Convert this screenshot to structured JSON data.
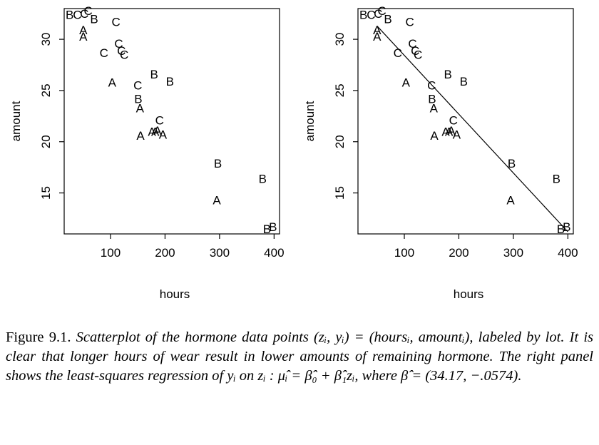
{
  "chart_data": [
    {
      "type": "scatter",
      "panel": "left",
      "xlabel": "hours",
      "ylabel": "amount",
      "xlim": [
        15,
        410
      ],
      "ylim": [
        11,
        33
      ],
      "xticks": [
        100,
        200,
        300,
        400
      ],
      "yticks": [
        15,
        20,
        25,
        30
      ],
      "points": [
        {
          "x": 25,
          "y": 32.4,
          "label": "B"
        },
        {
          "x": 39,
          "y": 32.4,
          "label": "C"
        },
        {
          "x": 50,
          "y": 30.9,
          "label": "A"
        },
        {
          "x": 50,
          "y": 30.3,
          "label": "A"
        },
        {
          "x": 52,
          "y": 32.5,
          "label": "C"
        },
        {
          "x": 59,
          "y": 32.8,
          "label": "C"
        },
        {
          "x": 70,
          "y": 32.0,
          "label": "B"
        },
        {
          "x": 88,
          "y": 28.7,
          "label": "C"
        },
        {
          "x": 103,
          "y": 25.8,
          "label": "A"
        },
        {
          "x": 110,
          "y": 31.7,
          "label": "C"
        },
        {
          "x": 115,
          "y": 29.6,
          "label": "C"
        },
        {
          "x": 120,
          "y": 28.9,
          "label": "C"
        },
        {
          "x": 125,
          "y": 28.5,
          "label": "C"
        },
        {
          "x": 150,
          "y": 25.5,
          "label": "C"
        },
        {
          "x": 151,
          "y": 24.2,
          "label": "B"
        },
        {
          "x": 154,
          "y": 23.3,
          "label": "A"
        },
        {
          "x": 155,
          "y": 20.6,
          "label": "A"
        },
        {
          "x": 176,
          "y": 21.0,
          "label": "A"
        },
        {
          "x": 180,
          "y": 26.6,
          "label": "B"
        },
        {
          "x": 182,
          "y": 21.0,
          "label": "A"
        },
        {
          "x": 186,
          "y": 21.1,
          "label": "A"
        },
        {
          "x": 190,
          "y": 22.1,
          "label": "C"
        },
        {
          "x": 196,
          "y": 20.7,
          "label": "A"
        },
        {
          "x": 209,
          "y": 25.9,
          "label": "B"
        },
        {
          "x": 295,
          "y": 14.3,
          "label": "A"
        },
        {
          "x": 297,
          "y": 17.9,
          "label": "B"
        },
        {
          "x": 379,
          "y": 16.4,
          "label": "B"
        },
        {
          "x": 387,
          "y": 11.5,
          "label": "B"
        },
        {
          "x": 398,
          "y": 11.7,
          "label": "B"
        }
      ]
    },
    {
      "type": "scatter",
      "panel": "right",
      "xlabel": "hours",
      "ylabel": "amount",
      "xlim": [
        15,
        410
      ],
      "ylim": [
        11,
        33
      ],
      "xticks": [
        100,
        200,
        300,
        400
      ],
      "yticks": [
        15,
        20,
        25,
        30
      ],
      "points": [
        {
          "x": 25,
          "y": 32.4,
          "label": "B"
        },
        {
          "x": 39,
          "y": 32.4,
          "label": "C"
        },
        {
          "x": 50,
          "y": 30.9,
          "label": "A"
        },
        {
          "x": 50,
          "y": 30.3,
          "label": "A"
        },
        {
          "x": 52,
          "y": 32.5,
          "label": "C"
        },
        {
          "x": 59,
          "y": 32.8,
          "label": "C"
        },
        {
          "x": 70,
          "y": 32.0,
          "label": "B"
        },
        {
          "x": 88,
          "y": 28.7,
          "label": "C"
        },
        {
          "x": 103,
          "y": 25.8,
          "label": "A"
        },
        {
          "x": 110,
          "y": 31.7,
          "label": "C"
        },
        {
          "x": 115,
          "y": 29.6,
          "label": "C"
        },
        {
          "x": 120,
          "y": 28.9,
          "label": "C"
        },
        {
          "x": 125,
          "y": 28.5,
          "label": "C"
        },
        {
          "x": 150,
          "y": 25.5,
          "label": "C"
        },
        {
          "x": 151,
          "y": 24.2,
          "label": "B"
        },
        {
          "x": 154,
          "y": 23.3,
          "label": "A"
        },
        {
          "x": 155,
          "y": 20.6,
          "label": "A"
        },
        {
          "x": 176,
          "y": 21.0,
          "label": "A"
        },
        {
          "x": 180,
          "y": 26.6,
          "label": "B"
        },
        {
          "x": 182,
          "y": 21.0,
          "label": "A"
        },
        {
          "x": 186,
          "y": 21.1,
          "label": "A"
        },
        {
          "x": 190,
          "y": 22.1,
          "label": "C"
        },
        {
          "x": 196,
          "y": 20.7,
          "label": "A"
        },
        {
          "x": 209,
          "y": 25.9,
          "label": "B"
        },
        {
          "x": 295,
          "y": 14.3,
          "label": "A"
        },
        {
          "x": 297,
          "y": 17.9,
          "label": "B"
        },
        {
          "x": 379,
          "y": 16.4,
          "label": "B"
        },
        {
          "x": 387,
          "y": 11.5,
          "label": "B"
        },
        {
          "x": 398,
          "y": 11.7,
          "label": "B"
        }
      ],
      "regression_line": {
        "intercept": 34.17,
        "slope": -0.0574,
        "x_range": [
          50,
          400
        ]
      }
    }
  ],
  "caption": {
    "figure_number": "Figure 9.1.",
    "text": "Scatterplot of the hormone data points (zᵢ, yᵢ) = (hoursᵢ, amountᵢ), labeled by lot. It is clear that longer hours of wear result in lower amounts of remaining hormone. The right panel shows the least-squares regression of yᵢ on zᵢ : μ̂ᵢ = β̂₀ + β̂₁zᵢ, where β̂ = (34.17, −.0574)."
  }
}
